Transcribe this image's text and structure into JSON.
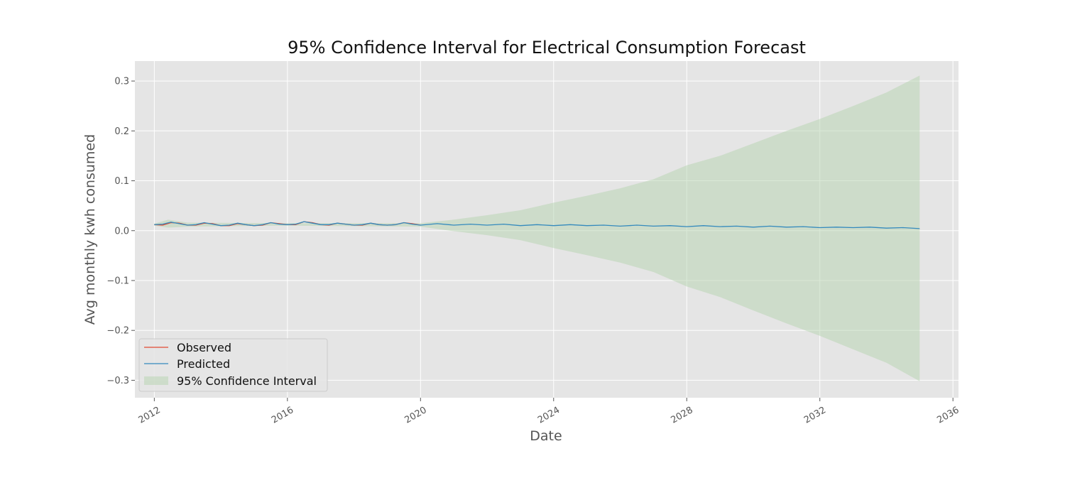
{
  "chart_data": {
    "type": "line",
    "title": "95% Confidence Interval for Electrical Consumption Forecast",
    "xlabel": "Date",
    "ylabel": "Avg monthly kwh consumed",
    "xlim": [
      "2011-06-01",
      "2036-03-01"
    ],
    "ylim": [
      -0.335,
      0.34
    ],
    "x_ticks": [
      {
        "date": "2012-01-01",
        "label": "2012"
      },
      {
        "date": "2016-01-01",
        "label": "2016"
      },
      {
        "date": "2020-01-01",
        "label": "2020"
      },
      {
        "date": "2024-01-01",
        "label": "2024"
      },
      {
        "date": "2028-01-01",
        "label": "2028"
      },
      {
        "date": "2032-01-01",
        "label": "2032"
      },
      {
        "date": "2036-01-01",
        "label": "2036"
      }
    ],
    "y_ticks": [
      {
        "value": 0.3,
        "label": "0.3"
      },
      {
        "value": 0.2,
        "label": "0.2"
      },
      {
        "value": 0.1,
        "label": "0.1"
      },
      {
        "value": 0.0,
        "label": "0.0"
      },
      {
        "value": -0.1,
        "label": "−0.1"
      },
      {
        "value": -0.2,
        "label": "−0.2"
      },
      {
        "value": -0.3,
        "label": "−0.3"
      }
    ],
    "grid": true,
    "legend_position": "lower-left",
    "series": [
      {
        "name": "Observed",
        "color": "#e24a33",
        "points": [
          [
            "2012-01-01",
            0.012
          ],
          [
            "2012-04-01",
            0.011
          ],
          [
            "2012-07-01",
            0.016
          ],
          [
            "2012-10-01",
            0.015
          ],
          [
            "2013-01-01",
            0.011
          ],
          [
            "2013-04-01",
            0.011
          ],
          [
            "2013-07-01",
            0.015
          ],
          [
            "2013-10-01",
            0.014
          ],
          [
            "2014-01-01",
            0.01
          ],
          [
            "2014-04-01",
            0.01
          ],
          [
            "2014-07-01",
            0.014
          ],
          [
            "2014-10-01",
            0.012
          ],
          [
            "2015-01-01",
            0.01
          ],
          [
            "2015-04-01",
            0.011
          ],
          [
            "2015-07-01",
            0.016
          ],
          [
            "2015-10-01",
            0.014
          ],
          [
            "2016-01-01",
            0.012
          ],
          [
            "2016-04-01",
            0.012
          ],
          [
            "2016-07-01",
            0.018
          ],
          [
            "2016-10-01",
            0.016
          ],
          [
            "2017-01-01",
            0.012
          ],
          [
            "2017-04-01",
            0.011
          ],
          [
            "2017-07-01",
            0.015
          ],
          [
            "2017-10-01",
            0.013
          ],
          [
            "2018-01-01",
            0.011
          ],
          [
            "2018-04-01",
            0.011
          ],
          [
            "2018-07-01",
            0.015
          ],
          [
            "2018-10-01",
            0.012
          ],
          [
            "2019-01-01",
            0.011
          ],
          [
            "2019-04-01",
            0.012
          ],
          [
            "2019-07-01",
            0.016
          ],
          [
            "2019-10-01",
            0.014
          ],
          [
            "2020-01-01",
            0.011
          ]
        ]
      },
      {
        "name": "Predicted",
        "color": "#348abd",
        "points": [
          [
            "2012-01-01",
            0.012
          ],
          [
            "2012-04-01",
            0.013
          ],
          [
            "2012-07-01",
            0.017
          ],
          [
            "2012-10-01",
            0.014
          ],
          [
            "2013-01-01",
            0.011
          ],
          [
            "2013-04-01",
            0.012
          ],
          [
            "2013-07-01",
            0.016
          ],
          [
            "2013-10-01",
            0.013
          ],
          [
            "2014-01-01",
            0.01
          ],
          [
            "2014-04-01",
            0.011
          ],
          [
            "2014-07-01",
            0.015
          ],
          [
            "2014-10-01",
            0.012
          ],
          [
            "2015-01-01",
            0.01
          ],
          [
            "2015-04-01",
            0.012
          ],
          [
            "2015-07-01",
            0.016
          ],
          [
            "2015-10-01",
            0.013
          ],
          [
            "2016-01-01",
            0.012
          ],
          [
            "2016-04-01",
            0.013
          ],
          [
            "2016-07-01",
            0.018
          ],
          [
            "2016-10-01",
            0.015
          ],
          [
            "2017-01-01",
            0.012
          ],
          [
            "2017-04-01",
            0.012
          ],
          [
            "2017-07-01",
            0.015
          ],
          [
            "2017-10-01",
            0.013
          ],
          [
            "2018-01-01",
            0.011
          ],
          [
            "2018-04-01",
            0.012
          ],
          [
            "2018-07-01",
            0.015
          ],
          [
            "2018-10-01",
            0.012
          ],
          [
            "2019-01-01",
            0.011
          ],
          [
            "2019-04-01",
            0.012
          ],
          [
            "2019-07-01",
            0.016
          ],
          [
            "2019-10-01",
            0.013
          ],
          [
            "2020-01-01",
            0.011
          ],
          [
            "2020-07-01",
            0.014
          ],
          [
            "2021-01-01",
            0.011
          ],
          [
            "2021-07-01",
            0.013
          ],
          [
            "2022-01-01",
            0.011
          ],
          [
            "2022-07-01",
            0.013
          ],
          [
            "2023-01-01",
            0.01
          ],
          [
            "2023-07-01",
            0.012
          ],
          [
            "2024-01-01",
            0.01
          ],
          [
            "2024-07-01",
            0.012
          ],
          [
            "2025-01-01",
            0.01
          ],
          [
            "2025-07-01",
            0.011
          ],
          [
            "2026-01-01",
            0.009
          ],
          [
            "2026-07-01",
            0.011
          ],
          [
            "2027-01-01",
            0.009
          ],
          [
            "2027-07-01",
            0.01
          ],
          [
            "2028-01-01",
            0.008
          ],
          [
            "2028-07-01",
            0.01
          ],
          [
            "2029-01-01",
            0.008
          ],
          [
            "2029-07-01",
            0.009
          ],
          [
            "2030-01-01",
            0.007
          ],
          [
            "2030-07-01",
            0.009
          ],
          [
            "2031-01-01",
            0.007
          ],
          [
            "2031-07-01",
            0.008
          ],
          [
            "2032-01-01",
            0.006
          ],
          [
            "2032-07-01",
            0.007
          ],
          [
            "2033-01-01",
            0.006
          ],
          [
            "2033-07-01",
            0.007
          ],
          [
            "2034-01-01",
            0.005
          ],
          [
            "2034-07-01",
            0.006
          ],
          [
            "2035-01-01",
            0.004
          ]
        ]
      }
    ],
    "confidence_interval": {
      "name": "95% Confidence Interval",
      "color": "#b6d3b0",
      "points": [
        [
          "2012-01-01",
          0.01,
          0.014
        ],
        [
          "2012-06-01",
          0.006,
          0.022
        ],
        [
          "2013-01-01",
          0.008,
          0.016
        ],
        [
          "2016-01-01",
          0.01,
          0.015
        ],
        [
          "2020-01-01",
          0.008,
          0.015
        ],
        [
          "2021-01-01",
          -0.001,
          0.022
        ],
        [
          "2022-01-01",
          -0.009,
          0.031
        ],
        [
          "2023-01-01",
          -0.019,
          0.041
        ],
        [
          "2024-01-01",
          -0.035,
          0.056
        ],
        [
          "2025-01-01",
          -0.049,
          0.07
        ],
        [
          "2026-01-01",
          -0.064,
          0.085
        ],
        [
          "2027-01-01",
          -0.083,
          0.103
        ],
        [
          "2028-01-01",
          -0.112,
          0.131
        ],
        [
          "2029-01-01",
          -0.133,
          0.15
        ],
        [
          "2030-01-01",
          -0.16,
          0.175
        ],
        [
          "2031-01-01",
          -0.186,
          0.2
        ],
        [
          "2032-01-01",
          -0.211,
          0.224
        ],
        [
          "2033-01-01",
          -0.238,
          0.25
        ],
        [
          "2034-01-01",
          -0.265,
          0.277
        ],
        [
          "2035-01-01",
          -0.302,
          0.311
        ]
      ]
    }
  }
}
